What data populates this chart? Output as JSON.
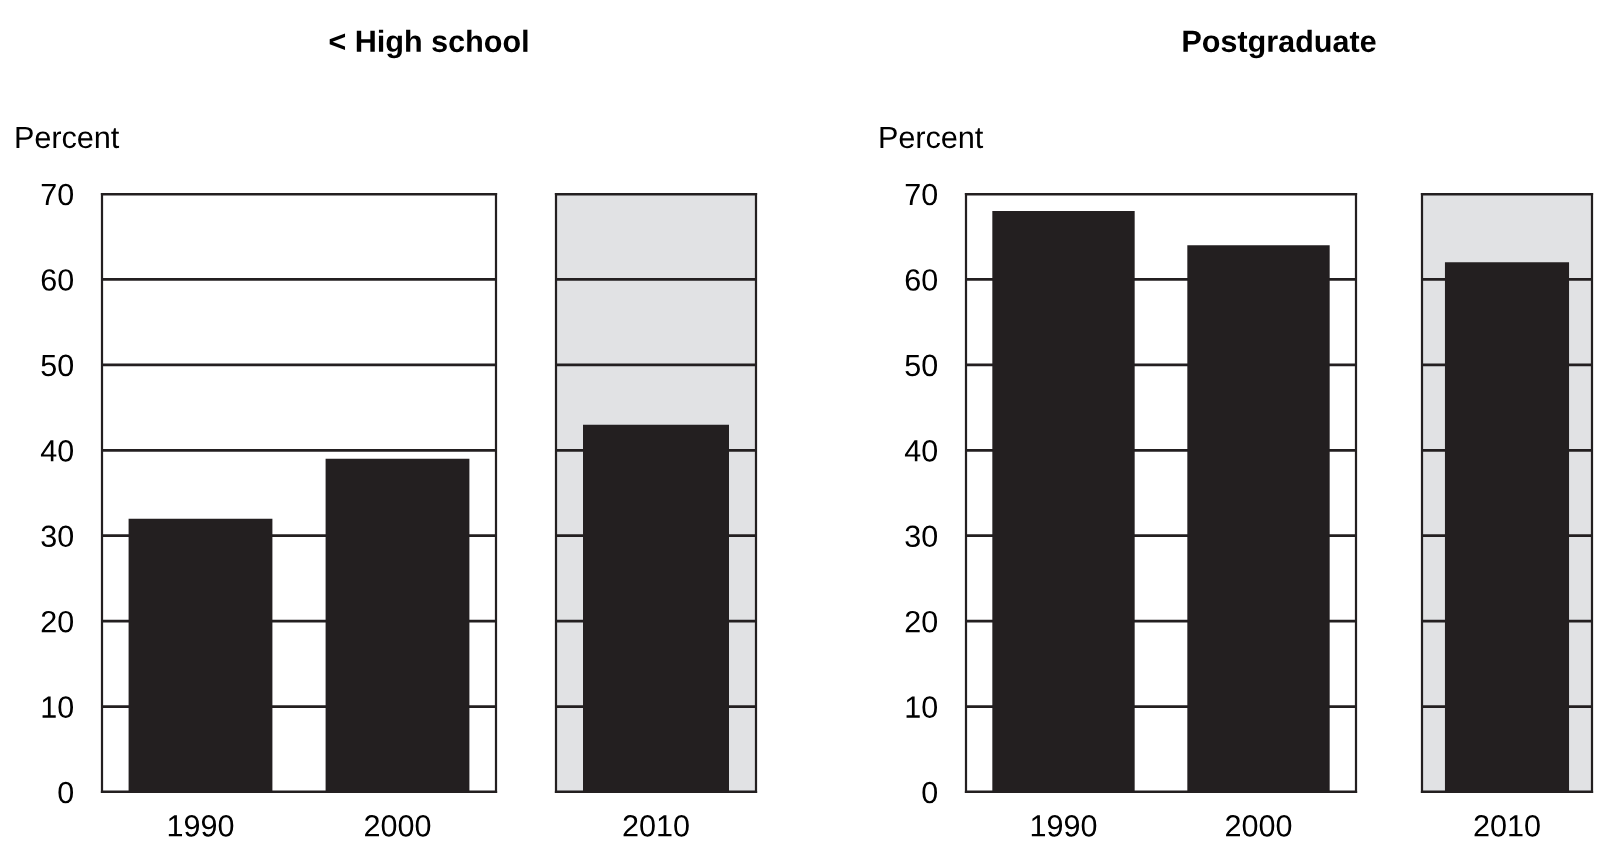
{
  "chart_data": [
    {
      "type": "bar",
      "title": "< High school",
      "ylabel": "Percent",
      "categories": [
        "1990",
        "2000"
      ],
      "values": [
        32,
        39
      ],
      "color": "#231f20",
      "ylim": [
        0,
        70
      ],
      "yticks": [
        0,
        10,
        20,
        30,
        40,
        50,
        60,
        70
      ],
      "grid": "y"
    },
    {
      "type": "bar",
      "categories": [
        "2010"
      ],
      "values": [
        43
      ],
      "color": "#231f20",
      "ylim": [
        0,
        70
      ],
      "yticks": [
        0,
        10,
        20,
        30,
        40,
        50,
        60,
        70
      ],
      "grid": "y",
      "tick_labels": "x",
      "bands": [
        {
          "axis": "y",
          "from": 0,
          "to": 70,
          "color": "#e1e2e4"
        }
      ]
    },
    {
      "type": "bar",
      "title": "Postgraduate",
      "ylabel": "Percent",
      "categories": [
        "1990",
        "2000"
      ],
      "values": [
        68,
        64
      ],
      "color": "#231f20",
      "ylim": [
        0,
        70
      ],
      "yticks": [
        0,
        10,
        20,
        30,
        40,
        50,
        60,
        70
      ],
      "grid": "y"
    },
    {
      "type": "bar",
      "categories": [
        "2010"
      ],
      "values": [
        62
      ],
      "color": "#231f20",
      "ylim": [
        0,
        70
      ],
      "yticks": [
        0,
        10,
        20,
        30,
        40,
        50,
        60,
        70
      ],
      "grid": "y",
      "tick_labels": "x",
      "bands": [
        {
          "axis": "y",
          "from": 0,
          "to": 70,
          "color": "#e1e2e4"
        }
      ]
    }
  ]
}
